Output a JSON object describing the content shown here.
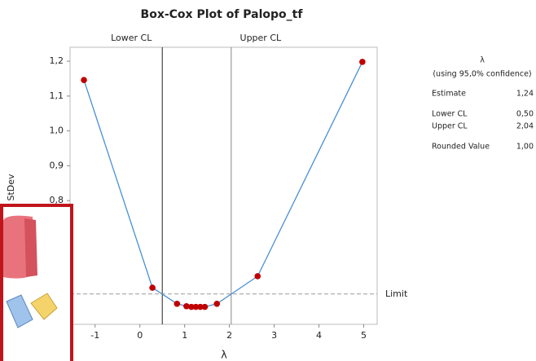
{
  "chart_data": {
    "type": "line",
    "title": "Box-Cox Plot of Palopo_tf",
    "x_label": "λ",
    "y_label": "StDev",
    "x": [
      -1.25,
      0.28,
      0.83,
      1.04,
      1.15,
      1.25,
      1.35,
      1.45,
      1.72,
      2.63,
      4.97
    ],
    "series": [
      {
        "color": "#4a8fd4",
        "marker_color": "#c00000",
        "values": [
          1.146,
          0.55,
          0.504,
          0.497,
          0.495,
          0.495,
          0.495,
          0.495,
          0.504,
          0.583,
          1.198
        ]
      }
    ],
    "xlim": [
      -1.56,
      5.3
    ],
    "xticks": [
      -1,
      0,
      1,
      2,
      3,
      4,
      5
    ],
    "ylim": [
      0.445,
      1.24
    ],
    "yticks": [
      {
        "value": 0.8,
        "label": "0,8"
      },
      {
        "value": 0.9,
        "label": "0,9"
      },
      {
        "value": 1.0,
        "label": "1,0"
      },
      {
        "value": 1.1,
        "label": "1,1"
      },
      {
        "value": 1.2,
        "label": "1,2"
      }
    ],
    "limit": 0.532,
    "limit_label": "Limit",
    "lower_cl": 0.5,
    "lower_cl_label": "Lower CL",
    "upper_cl": 2.04,
    "upper_cl_label": "Upper CL"
  },
  "panel": {
    "title": "λ",
    "subtitle": "(using 95,0% confidence)",
    "rows": [
      [
        "Estimate",
        "1,24"
      ],
      [
        "Lower CL",
        "0,50"
      ],
      [
        "Upper CL",
        "2,04"
      ],
      [
        "Rounded Value",
        "1,00"
      ]
    ]
  }
}
